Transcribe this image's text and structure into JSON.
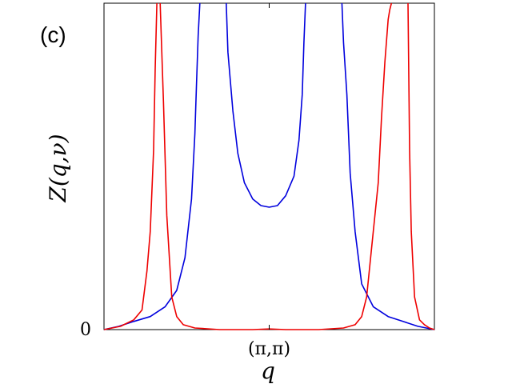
{
  "chart_data": {
    "type": "line",
    "panel_label": "(c)",
    "xlabel": "q",
    "ylabel": "Z(q,ν)",
    "xlim": [
      -1,
      1
    ],
    "ylim": [
      0,
      1
    ],
    "x_ticks": [
      {
        "value": 0,
        "label": "(π,π)"
      }
    ],
    "y_ticks": [
      {
        "value": 0,
        "label": "0"
      }
    ],
    "grid": false,
    "colors": {
      "series_1": "#0000dd",
      "series_2": "#ee0000"
    },
    "series": [
      {
        "color_key": "series_1",
        "segments": [
          {
            "x": [
              -1.0,
              -0.91,
              -0.82,
              -0.72,
              -0.63,
              -0.56,
              -0.51,
              -0.47,
              -0.45,
              -0.44,
              -0.43,
              -0.42
            ],
            "y": [
              0.0,
              0.01,
              0.025,
              0.04,
              0.07,
              0.12,
              0.22,
              0.4,
              0.6,
              0.75,
              0.9,
              1.0
            ]
          },
          {
            "x": [
              -0.26,
              -0.25,
              -0.22,
              -0.19,
              -0.15,
              -0.1,
              -0.05,
              0.0,
              0.05,
              0.1,
              0.15,
              0.18,
              0.2,
              0.21,
              0.22
            ],
            "y": [
              1.0,
              0.85,
              0.67,
              0.54,
              0.45,
              0.4,
              0.38,
              0.375,
              0.38,
              0.41,
              0.47,
              0.58,
              0.72,
              0.88,
              1.0
            ]
          },
          {
            "x": [
              0.44,
              0.45,
              0.47,
              0.49,
              0.52,
              0.56,
              0.63,
              0.72,
              0.81,
              0.9,
              1.0
            ],
            "y": [
              1.0,
              0.88,
              0.72,
              0.48,
              0.3,
              0.14,
              0.07,
              0.04,
              0.025,
              0.01,
              0.0
            ]
          }
        ]
      },
      {
        "color_key": "series_2",
        "segments": [
          {
            "x": [
              -1.0,
              -0.9,
              -0.82,
              -0.77,
              -0.74,
              -0.72,
              -0.7,
              -0.69,
              -0.68
            ],
            "y": [
              0.0,
              0.01,
              0.03,
              0.06,
              0.18,
              0.3,
              0.55,
              0.8,
              1.0
            ]
          },
          {
            "x": [
              -0.66,
              -0.64,
              -0.62,
              -0.59,
              -0.56,
              -0.52,
              -0.45,
              -0.3,
              -0.1,
              0.0,
              0.1,
              0.3,
              0.45,
              0.52,
              0.56,
              0.59,
              0.62,
              0.66,
              0.68,
              0.7,
              0.72,
              0.73,
              0.74
            ],
            "y": [
              1.0,
              0.7,
              0.35,
              0.1,
              0.04,
              0.015,
              0.005,
              0.0,
              0.0,
              0.002,
              0.0,
              0.0,
              0.005,
              0.015,
              0.04,
              0.1,
              0.25,
              0.45,
              0.65,
              0.82,
              0.95,
              0.98,
              1.0
            ]
          },
          {
            "x": [
              0.84,
              0.85,
              0.86,
              0.88,
              0.91,
              0.94,
              0.97,
              1.0
            ],
            "y": [
              1.0,
              0.55,
              0.3,
              0.1,
              0.03,
              0.015,
              0.005,
              0.0
            ]
          }
        ]
      }
    ]
  }
}
